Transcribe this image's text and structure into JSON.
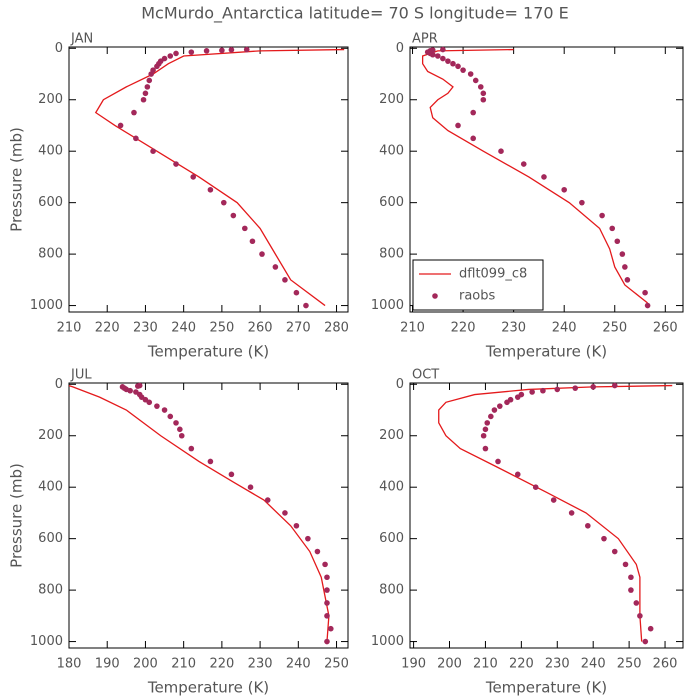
{
  "title": "McMurdo_Antarctica  latitude= 70 S longitude= 170 E",
  "chart_data": [
    {
      "type": "line",
      "title": "JAN",
      "xlabel": "Temperature (K)",
      "ylabel": "Pressure (mb)",
      "xlim": [
        210,
        283
      ],
      "ylim": [
        1025,
        -5
      ],
      "xticks": [
        210,
        220,
        230,
        240,
        250,
        260,
        270,
        280
      ],
      "yticks": [
        0,
        200,
        400,
        600,
        800,
        1000
      ],
      "series": [
        {
          "type": "line",
          "color": "#e41a1c",
          "x": [
            277,
            268,
            264,
            260,
            254,
            244,
            233,
            222,
            217,
            219,
            225,
            232,
            236,
            240,
            260,
            282
          ],
          "y": [
            1000,
            900,
            800,
            700,
            600,
            500,
            400,
            300,
            250,
            200,
            150,
            100,
            60,
            30,
            10,
            5
          ]
        },
        {
          "type": "scatter",
          "color": "#a3285a",
          "x": [
            272,
            269.5,
            266.5,
            264,
            260.5,
            258,
            256,
            253,
            250.5,
            247,
            242.5,
            238,
            232,
            227.5,
            223.5,
            227,
            229.5,
            230,
            230.5,
            231,
            231.5,
            232,
            233,
            233.5,
            234,
            235,
            236.5,
            238,
            242,
            246,
            250,
            252.5,
            256.5
          ],
          "y": [
            1000,
            950,
            900,
            850,
            800,
            750,
            700,
            650,
            600,
            550,
            500,
            450,
            400,
            350,
            300,
            250,
            200,
            175,
            150,
            125,
            100,
            85,
            70,
            60,
            50,
            40,
            30,
            20,
            15,
            10,
            8,
            6,
            5
          ]
        }
      ]
    },
    {
      "type": "line",
      "title": "APR",
      "xlabel": "Temperature (K)",
      "legend": "lower left",
      "xlim": [
        209.5,
        263.5
      ],
      "ylim": [
        1025,
        -5
      ],
      "xticks": [
        210,
        220,
        230,
        240,
        250,
        260
      ],
      "yticks": [
        0,
        200,
        400,
        600,
        800,
        1000
      ],
      "series": [
        {
          "type": "line",
          "name": "dflt099_c8",
          "color": "#e41a1c",
          "x": [
            256.5,
            252,
            250,
            249,
            247,
            241,
            233,
            224,
            217,
            214,
            213.5,
            215,
            217,
            218,
            216,
            213,
            212,
            212,
            215,
            230
          ],
          "y": [
            990,
            920,
            850,
            780,
            700,
            600,
            500,
            400,
            320,
            270,
            230,
            200,
            175,
            150,
            120,
            90,
            60,
            30,
            10,
            5
          ]
        },
        {
          "type": "scatter",
          "name": "raobs",
          "color": "#a3285a",
          "x": [
            256.5,
            256,
            252.5,
            252,
            251.5,
            250.5,
            249.5,
            247.5,
            243.5,
            240,
            236,
            232,
            227.5,
            222,
            219,
            222,
            224,
            224,
            223.5,
            222.5,
            221.5,
            220,
            219,
            218,
            217,
            216,
            215,
            214,
            213.5,
            213,
            213.5,
            214,
            216
          ],
          "y": [
            1000,
            950,
            900,
            850,
            800,
            750,
            700,
            650,
            600,
            550,
            500,
            450,
            400,
            350,
            300,
            250,
            200,
            175,
            150,
            125,
            100,
            85,
            70,
            60,
            50,
            40,
            30,
            25,
            20,
            15,
            10,
            7,
            5
          ]
        }
      ]
    },
    {
      "type": "line",
      "title": "JUL",
      "xlabel": "Temperature (K)",
      "ylabel": "Pressure (mb)",
      "xlim": [
        180,
        253
      ],
      "ylim": [
        1025,
        -5
      ],
      "xticks": [
        180,
        190,
        200,
        210,
        220,
        230,
        240,
        250
      ],
      "yticks": [
        0,
        200,
        400,
        600,
        800,
        1000
      ],
      "series": [
        {
          "type": "line",
          "color": "#e41a1c",
          "x": [
            247.5,
            248,
            246,
            243,
            238,
            231,
            223,
            214,
            204,
            195,
            188,
            181,
            180
          ],
          "y": [
            1000,
            900,
            750,
            650,
            550,
            450,
            380,
            300,
            200,
            100,
            50,
            10,
            5
          ]
        },
        {
          "type": "scatter",
          "color": "#a3285a",
          "x": [
            247.5,
            248.5,
            247.5,
            247.5,
            247.5,
            247.5,
            247,
            245,
            242.5,
            239.5,
            236.5,
            232,
            227.5,
            222.5,
            217,
            212,
            209.5,
            209,
            208,
            206.5,
            205,
            203,
            201,
            200,
            199,
            198.5,
            197.5,
            196,
            195,
            194.5,
            194,
            198,
            198.5
          ],
          "y": [
            1000,
            950,
            900,
            850,
            800,
            750,
            700,
            650,
            600,
            550,
            500,
            450,
            400,
            350,
            300,
            250,
            200,
            175,
            150,
            125,
            100,
            85,
            70,
            60,
            50,
            40,
            30,
            25,
            20,
            15,
            10,
            7,
            5
          ]
        }
      ]
    },
    {
      "type": "line",
      "title": "OCT",
      "xlabel": "Temperature (K)",
      "xlim": [
        189,
        265
      ],
      "ylim": [
        1025,
        -5
      ],
      "xticks": [
        190,
        200,
        210,
        220,
        230,
        240,
        250,
        260
      ],
      "yticks": [
        0,
        200,
        400,
        600,
        800,
        1000
      ],
      "series": [
        {
          "type": "line",
          "color": "#e41a1c",
          "x": [
            253.5,
            253,
            253,
            252,
            247,
            238,
            227,
            213,
            203,
            199,
            197,
            197,
            199,
            207,
            222,
            240,
            262
          ],
          "y": [
            1000,
            900,
            750,
            700,
            600,
            500,
            420,
            320,
            250,
            200,
            150,
            100,
            70,
            40,
            20,
            10,
            5
          ]
        },
        {
          "type": "scatter",
          "color": "#a3285a",
          "x": [
            254.5,
            256,
            253,
            252,
            250.5,
            250.5,
            249,
            246,
            243,
            238.5,
            234,
            229,
            224,
            219,
            213.5,
            210,
            209.5,
            210,
            210.5,
            211.5,
            212.5,
            214,
            216,
            217,
            219,
            220,
            223,
            226,
            230,
            235,
            240,
            246
          ],
          "y": [
            1000,
            950,
            900,
            850,
            800,
            750,
            700,
            650,
            600,
            550,
            500,
            450,
            400,
            350,
            300,
            250,
            200,
            175,
            150,
            125,
            100,
            85,
            70,
            60,
            50,
            40,
            30,
            25,
            20,
            15,
            10,
            5
          ]
        }
      ]
    }
  ]
}
